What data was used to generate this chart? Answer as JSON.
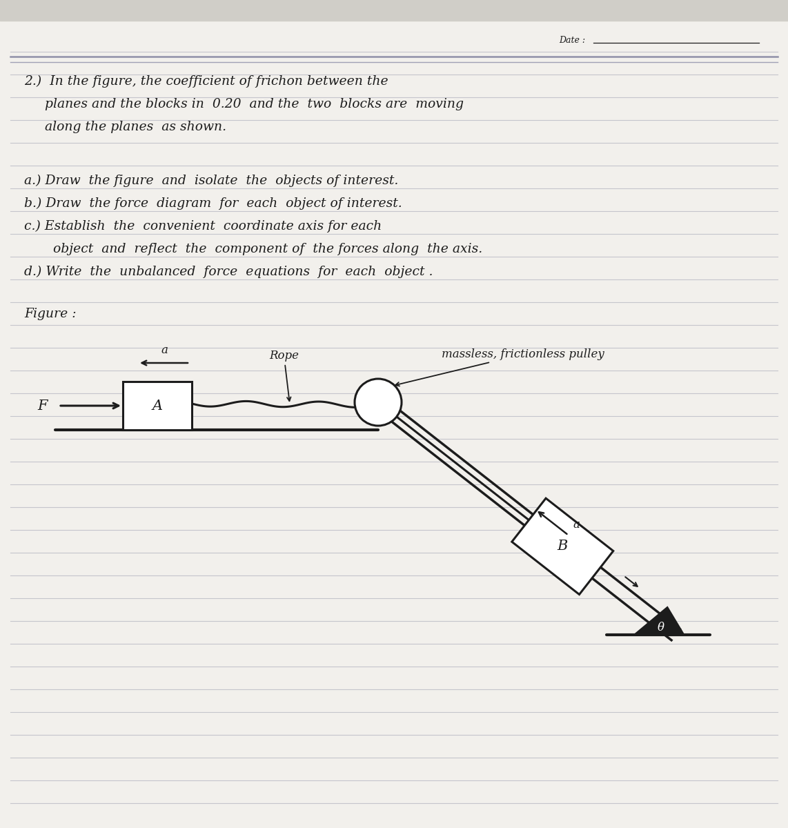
{
  "paper_color": "#f2f0ec",
  "line_color": "#c5c5cc",
  "ink_color": "#1c1c1c",
  "dark_line_color": "#8888a0",
  "date_text": "Date :",
  "prob_line1": "2.)  In the figure, the coefficient of frichon between the",
  "prob_line2": "     planes and the blocks in  0.20  and the  two  blocks are  moving",
  "prob_line3": "     along the planes  as shown.",
  "sub_a": "a.) Draw  the figure  and  isolate  the  objects of interest.",
  "sub_b": "b.) Draw  the force  diagram  for  each  object of interest.",
  "sub_c": "c.) Establish  the  convenient  coordinate axis for each",
  "sub_c2": "       object  and  reflect  the  component of  the forces along  the axis.",
  "sub_d": "d.) Write  the  unbalanced  force  equations  for  each  object .",
  "fig_label": "Figure :",
  "rope_label": "Rope",
  "pulley_label": "massless, frictionless pulley",
  "block_a": "A",
  "block_b": "B",
  "force_f": "F",
  "accel_a": "a",
  "theta": "θ"
}
